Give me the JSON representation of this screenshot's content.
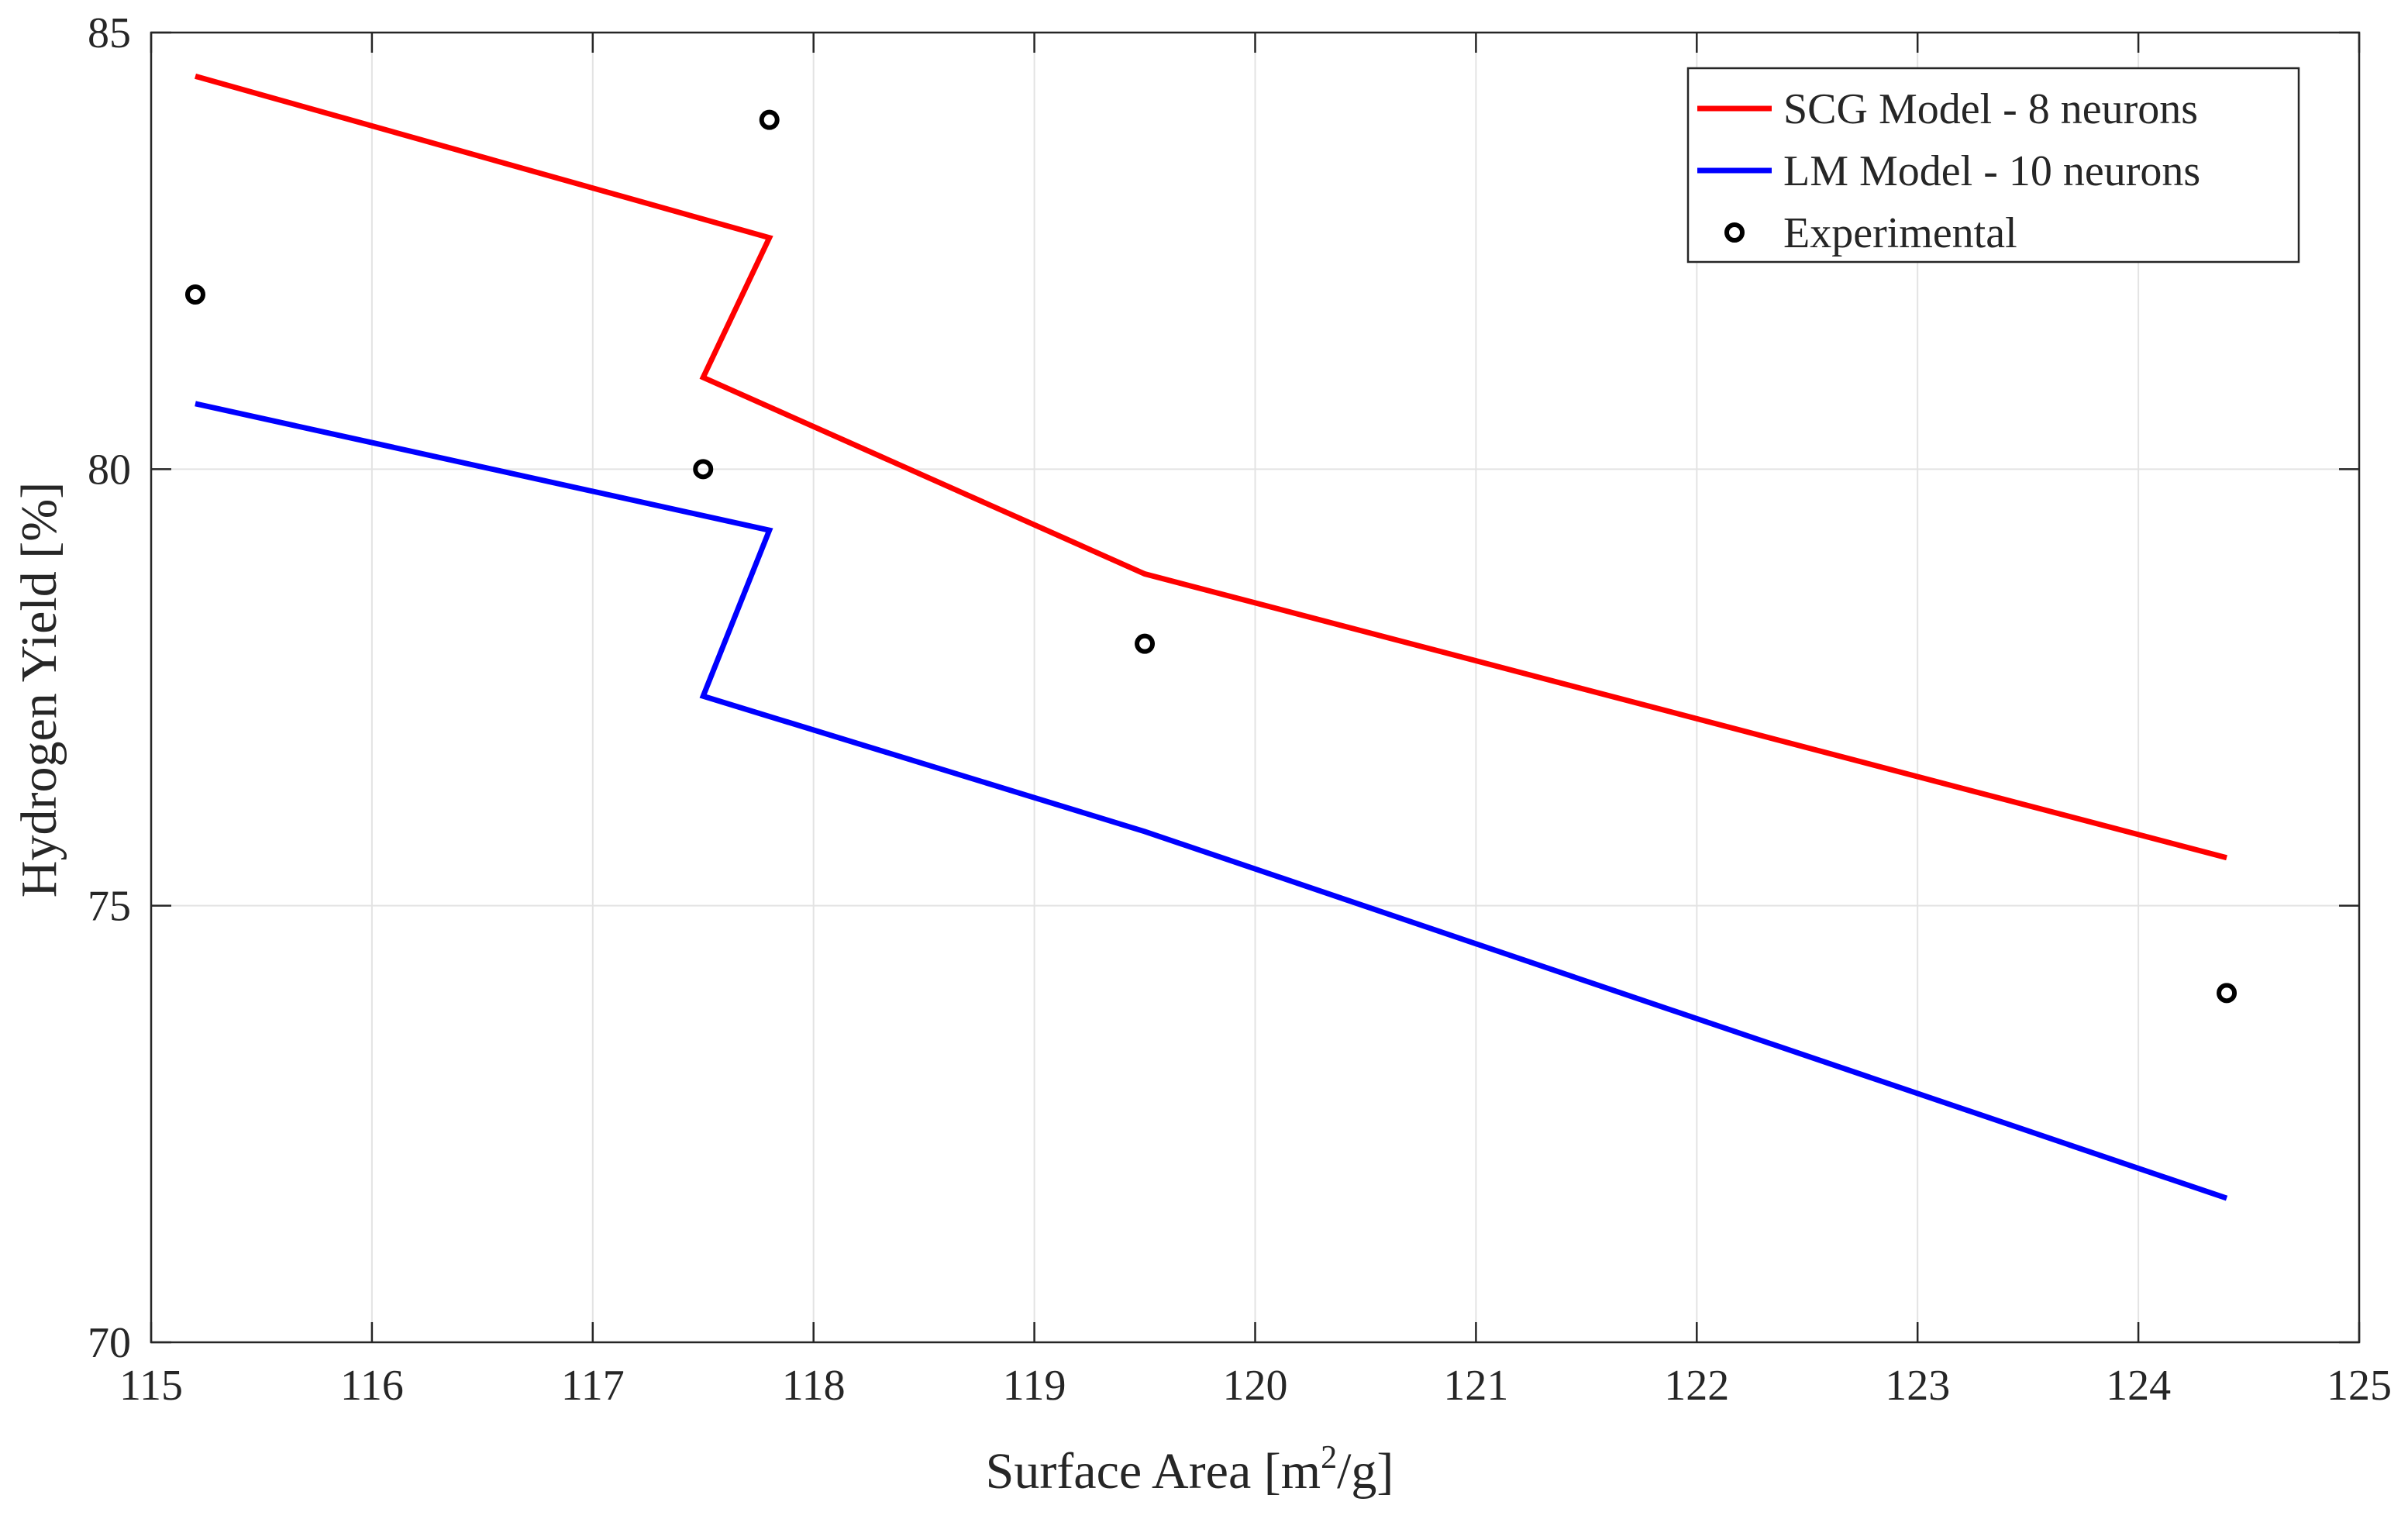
{
  "chart_data": {
    "type": "line",
    "title": "",
    "xlabel": {
      "main": "Surface Area [m",
      "sup": "2",
      "tail": "/g]"
    },
    "ylabel": "Hydrogen Yield [%]",
    "xlim": [
      115,
      125
    ],
    "ylim": [
      70,
      85
    ],
    "xticks": [
      115,
      116,
      117,
      118,
      119,
      120,
      121,
      122,
      123,
      124,
      125
    ],
    "yticks": [
      70,
      75,
      80,
      85
    ],
    "grid": true,
    "legend_position": "top-right",
    "series": [
      {
        "name": "SCG Model - 8 neurons",
        "kind": "line",
        "color": "#ff0000",
        "x": [
          115.2,
          117.8,
          117.5,
          119.5,
          124.4
        ],
        "y": [
          84.5,
          82.65,
          81.05,
          78.8,
          75.55
        ]
      },
      {
        "name": "LM Model - 10 neurons",
        "kind": "line",
        "color": "#0000ff",
        "x": [
          115.2,
          117.8,
          117.5,
          119.5,
          124.4
        ],
        "y": [
          80.75,
          79.3,
          77.4,
          75.85,
          71.65
        ]
      },
      {
        "name": "Experimental",
        "kind": "marker",
        "color": "#000000",
        "x": [
          115.2,
          117.8,
          117.5,
          119.5,
          124.4
        ],
        "y": [
          82,
          84,
          80,
          78,
          74
        ]
      }
    ]
  }
}
